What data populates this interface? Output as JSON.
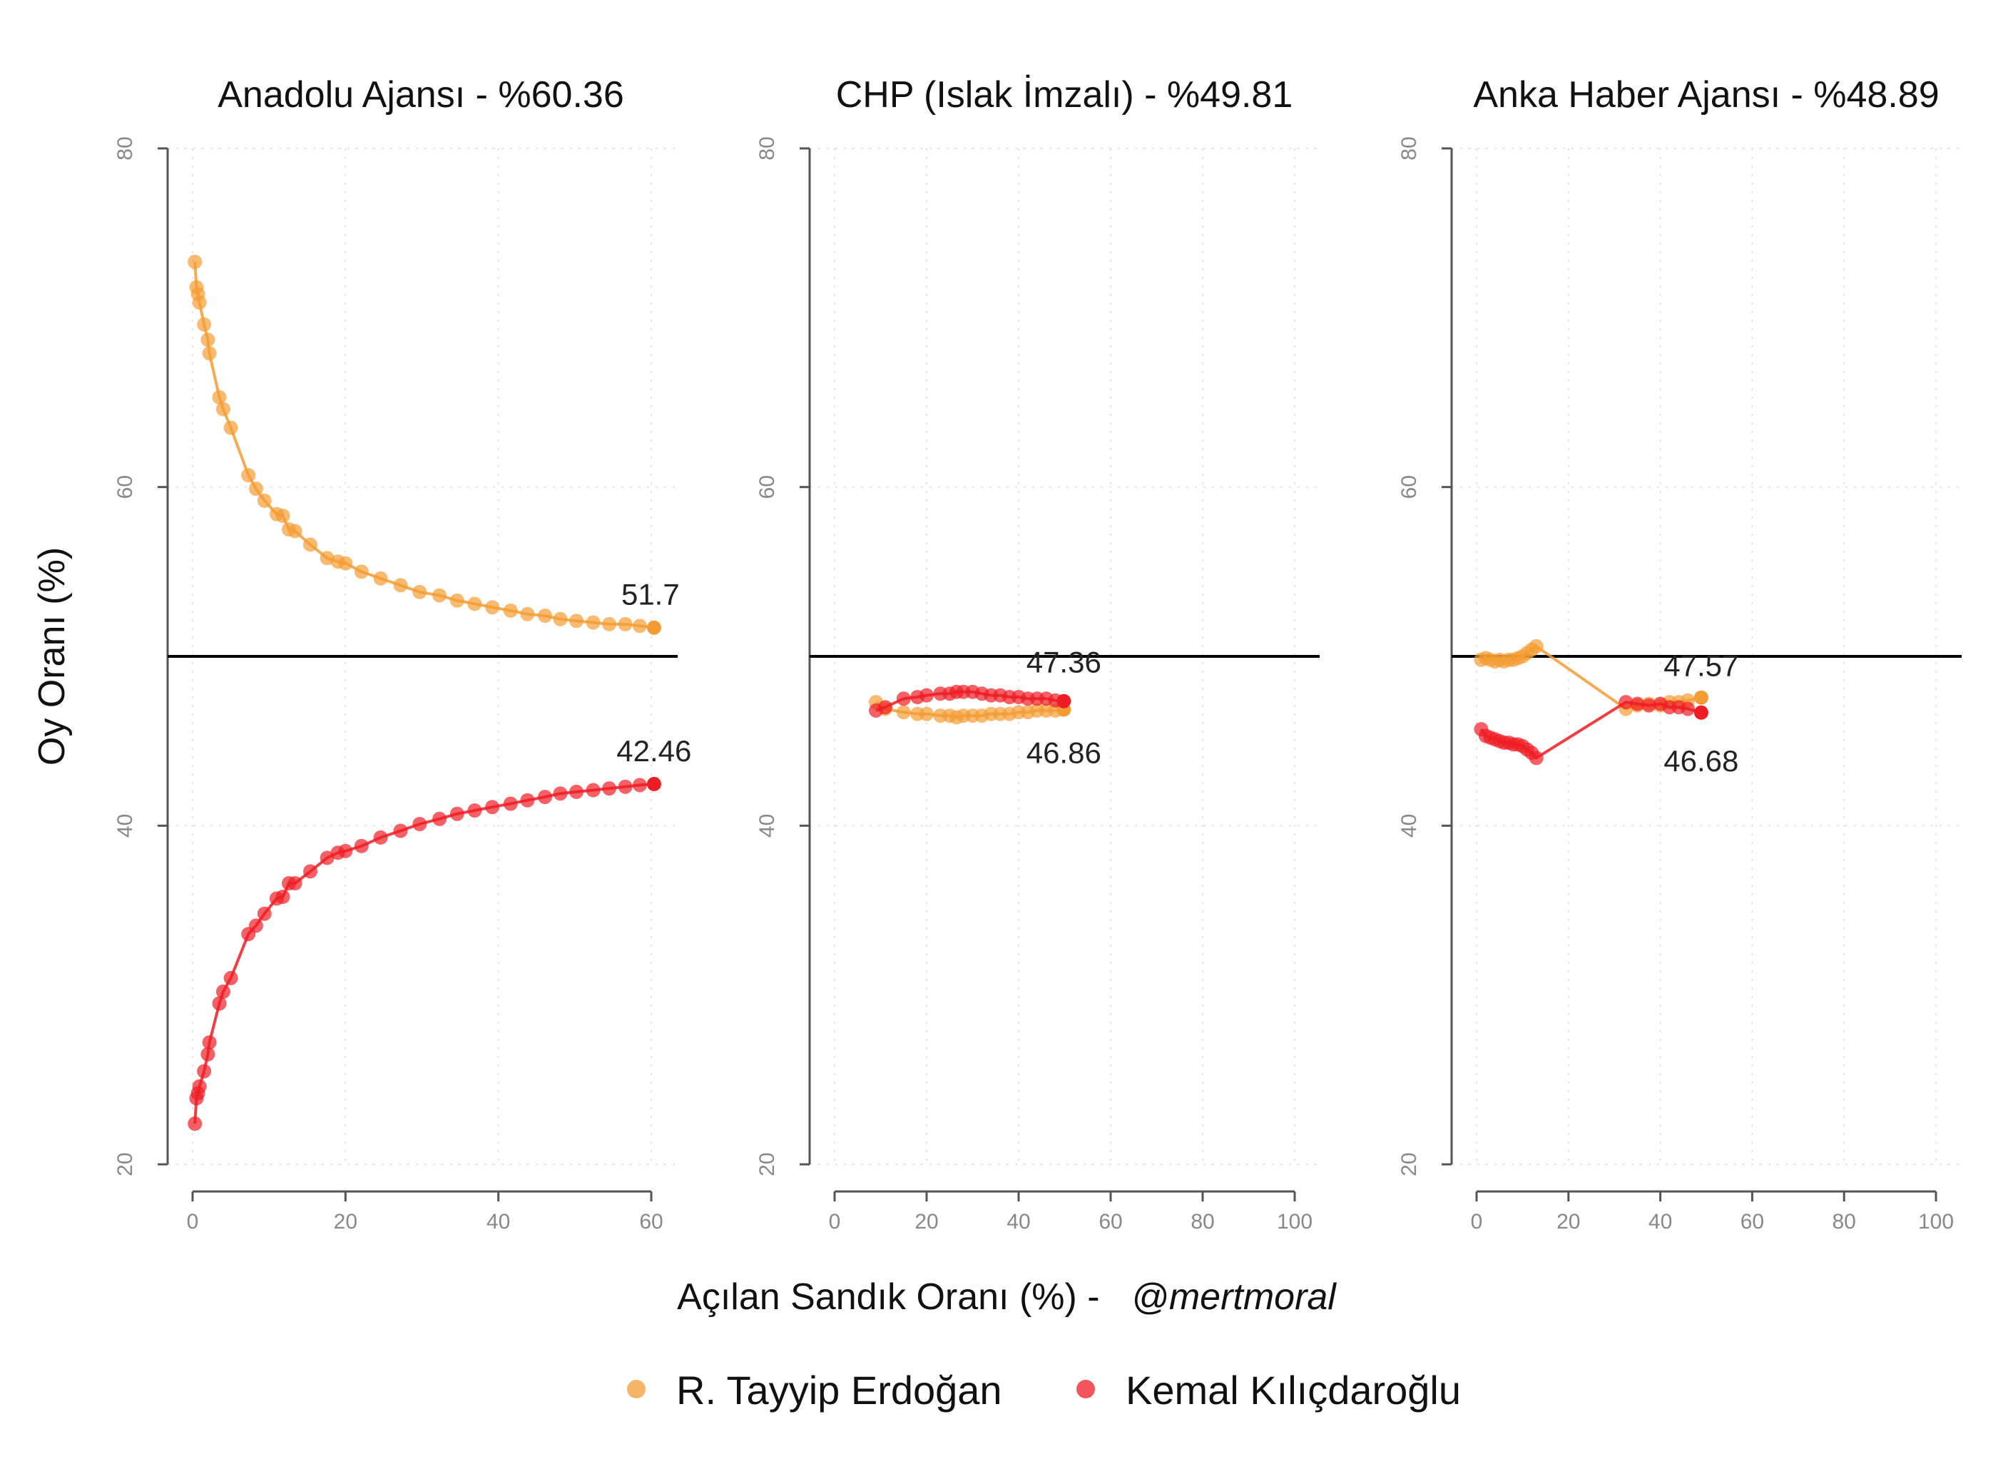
{
  "figure": {
    "ylabel": "Oy Oranı (%)",
    "xlabel_main": "Açılan Sandık Oranı (%) -",
    "xlabel_credit": "@mertmoral"
  },
  "legend": [
    {
      "name": "R. Tayyip Erdoğan",
      "color": "#F39C33"
    },
    {
      "name": "Kemal Kılıçdaroğlu",
      "color": "#EE1C24"
    }
  ],
  "chart_data": [
    {
      "type": "line",
      "title": "Anadolu Ajansı - %60.36",
      "xlim": [
        0,
        60
      ],
      "xticks": [
        0,
        20,
        40,
        60
      ],
      "ylim": [
        20,
        80
      ],
      "yticks": [
        20,
        40,
        60,
        80
      ],
      "reference_line_y": 50,
      "series": [
        {
          "name": "R. Tayyip Erdoğan",
          "color": "#F39C33",
          "end_label": "51.7",
          "x": [
            0.3,
            0.5,
            0.7,
            0.9,
            1.5,
            2.0,
            2.2,
            3.5,
            4.0,
            5.0,
            7.3,
            8.3,
            9.4,
            11.0,
            11.8,
            12.6,
            13.4,
            15.4,
            17.6,
            19.0,
            20.0,
            22.1,
            24.6,
            27.2,
            29.7,
            32.3,
            34.6,
            36.9,
            39.2,
            41.6,
            43.8,
            46.1,
            48.1,
            50.2,
            52.4,
            54.5,
            56.6,
            58.5,
            60.36
          ],
          "y": [
            73.3,
            71.8,
            71.4,
            70.9,
            69.6,
            68.7,
            67.9,
            65.3,
            64.6,
            63.5,
            60.7,
            59.9,
            59.2,
            58.4,
            58.3,
            57.5,
            57.4,
            56.6,
            55.8,
            55.6,
            55.5,
            55.0,
            54.6,
            54.2,
            53.8,
            53.6,
            53.3,
            53.1,
            52.9,
            52.7,
            52.5,
            52.4,
            52.2,
            52.1,
            52.0,
            51.9,
            51.9,
            51.8,
            51.7
          ]
        },
        {
          "name": "Kemal Kılıçdaroğlu",
          "color": "#EE1C24",
          "end_label": "42.46",
          "x": [
            0.3,
            0.5,
            0.7,
            0.9,
            1.5,
            2.0,
            2.2,
            3.5,
            4.0,
            5.0,
            7.3,
            8.3,
            9.4,
            11.0,
            11.8,
            12.6,
            13.4,
            15.4,
            17.6,
            19.0,
            20.0,
            22.1,
            24.6,
            27.2,
            29.7,
            32.3,
            34.6,
            36.9,
            39.2,
            41.6,
            43.8,
            46.1,
            48.1,
            50.2,
            52.4,
            54.5,
            56.6,
            58.5,
            60.36
          ],
          "y": [
            22.4,
            23.9,
            24.2,
            24.6,
            25.5,
            26.5,
            27.2,
            29.5,
            30.2,
            31.0,
            33.6,
            34.1,
            34.8,
            35.7,
            35.8,
            36.6,
            36.6,
            37.3,
            38.1,
            38.4,
            38.5,
            38.8,
            39.3,
            39.7,
            40.1,
            40.4,
            40.7,
            40.9,
            41.1,
            41.3,
            41.5,
            41.7,
            41.9,
            42.0,
            42.1,
            42.2,
            42.3,
            42.4,
            42.46
          ]
        }
      ]
    },
    {
      "type": "line",
      "title": "CHP (Islak İmzalı) - %49.81",
      "xlim": [
        0,
        100
      ],
      "xticks": [
        0,
        20,
        40,
        60,
        80,
        100
      ],
      "ylim": [
        20,
        80
      ],
      "yticks": [
        20,
        40,
        60,
        80
      ],
      "reference_line_y": 50,
      "series": [
        {
          "name": "R. Tayyip Erdoğan",
          "color": "#F39C33",
          "end_label": "46.86",
          "x": [
            9.0,
            11.0,
            15.0,
            18.0,
            20.0,
            23.0,
            25.0,
            26.5,
            28.0,
            30.0,
            32.0,
            34.0,
            36.0,
            38.0,
            40.0,
            42.0,
            44.0,
            46.0,
            48.0,
            49.81
          ],
          "y": [
            47.3,
            46.9,
            46.7,
            46.6,
            46.6,
            46.5,
            46.5,
            46.4,
            46.5,
            46.5,
            46.5,
            46.6,
            46.6,
            46.6,
            46.7,
            46.7,
            46.8,
            46.8,
            46.8,
            46.86
          ]
        },
        {
          "name": "Kemal Kılıçdaroğlu",
          "color": "#EE1C24",
          "end_label": "47.36",
          "x": [
            9.0,
            11.0,
            15.0,
            18.0,
            20.0,
            23.0,
            25.0,
            26.5,
            28.0,
            30.0,
            32.0,
            34.0,
            36.0,
            38.0,
            40.0,
            42.0,
            44.0,
            46.0,
            48.0,
            49.81
          ],
          "y": [
            46.8,
            47.0,
            47.5,
            47.6,
            47.7,
            47.8,
            47.8,
            47.9,
            47.9,
            47.9,
            47.8,
            47.7,
            47.7,
            47.6,
            47.6,
            47.5,
            47.5,
            47.5,
            47.4,
            47.36
          ]
        }
      ]
    },
    {
      "type": "line",
      "title": "Anka Haber Ajansı - %48.89",
      "xlim": [
        0,
        100
      ],
      "xticks": [
        0,
        20,
        40,
        60,
        80,
        100
      ],
      "ylim": [
        20,
        80
      ],
      "yticks": [
        20,
        40,
        60,
        80
      ],
      "reference_line_y": 50,
      "series": [
        {
          "name": "R. Tayyip Erdoğan",
          "color": "#F39C33",
          "end_label": "47.57",
          "x": [
            1.0,
            2.0,
            3.0,
            4.0,
            5.0,
            6.0,
            7.0,
            8.0,
            9.0,
            10.0,
            11.0,
            12.0,
            13.0,
            32.5,
            35.0,
            37.5,
            40.0,
            42.0,
            44.0,
            46.0,
            48.89
          ],
          "y": [
            49.8,
            49.9,
            49.8,
            49.7,
            49.8,
            49.7,
            49.8,
            49.8,
            49.9,
            50.0,
            50.2,
            50.4,
            50.6,
            46.9,
            47.1,
            47.2,
            47.1,
            47.3,
            47.3,
            47.4,
            47.57
          ]
        },
        {
          "name": "Kemal Kılıçdaroğlu",
          "color": "#EE1C24",
          "end_label": "46.68",
          "x": [
            1.0,
            2.0,
            3.0,
            4.0,
            5.0,
            6.0,
            7.0,
            8.0,
            9.0,
            10.0,
            11.0,
            12.0,
            13.0,
            32.5,
            35.0,
            37.5,
            40.0,
            42.0,
            44.0,
            46.0,
            48.89
          ],
          "y": [
            45.7,
            45.3,
            45.2,
            45.1,
            45.0,
            44.9,
            44.9,
            44.8,
            44.8,
            44.7,
            44.5,
            44.3,
            44.0,
            47.3,
            47.2,
            47.1,
            47.2,
            47.0,
            47.0,
            46.9,
            46.68
          ]
        }
      ]
    }
  ]
}
